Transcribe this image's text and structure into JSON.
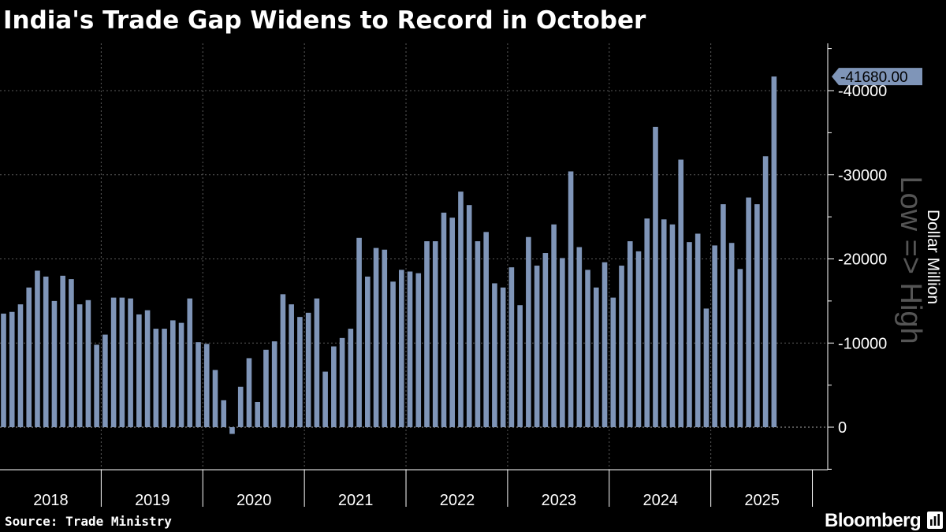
{
  "chart_data": {
    "type": "bar",
    "title": "India's Trade Gap Widens to Record in October",
    "ylabel": "Dollar Million",
    "axis_note": "Low => High",
    "ylim": [
      -5000,
      45000
    ],
    "y_ticks": [
      {
        "value": 40000,
        "label": "-40000"
      },
      {
        "value": 30000,
        "label": "-30000"
      },
      {
        "value": 20000,
        "label": "-20000"
      },
      {
        "value": 10000,
        "label": "-10000"
      },
      {
        "value": 0,
        "label": "0"
      }
    ],
    "x_year_labels": [
      "2018",
      "2019",
      "2020",
      "2021",
      "2022",
      "2023",
      "2024",
      "2025"
    ],
    "start_month": "2018-01",
    "last_value_label": "-41680.00",
    "bar_color": "#7f95b8",
    "values": [
      13500,
      13700,
      14600,
      16600,
      18600,
      17900,
      15000,
      18000,
      17600,
      14600,
      15100,
      9800,
      11000,
      15400,
      15400,
      15300,
      13400,
      13900,
      11700,
      11700,
      12700,
      12400,
      15300,
      10100,
      9900,
      6800,
      3200,
      -800,
      4800,
      8200,
      3000,
      9200,
      10200,
      15800,
      14600,
      13100,
      13600,
      15300,
      6600,
      9600,
      10600,
      11700,
      22500,
      17900,
      21300,
      21100,
      17300,
      18700,
      18500,
      18300,
      22100,
      22100,
      25500,
      24900,
      28000,
      26400,
      22100,
      23200,
      17100,
      16600,
      19000,
      14500,
      22600,
      19200,
      20700,
      24100,
      20100,
      30400,
      21400,
      18700,
      16600,
      19600,
      15400,
      19200,
      22100,
      20900,
      24800,
      35700,
      24700,
      24100,
      31800,
      22000,
      23000,
      14100,
      21600,
      26500,
      21900,
      18800,
      27300,
      26500,
      32200,
      41680
    ]
  },
  "source": "Source: Trade Ministry",
  "brand": "Bloomberg"
}
